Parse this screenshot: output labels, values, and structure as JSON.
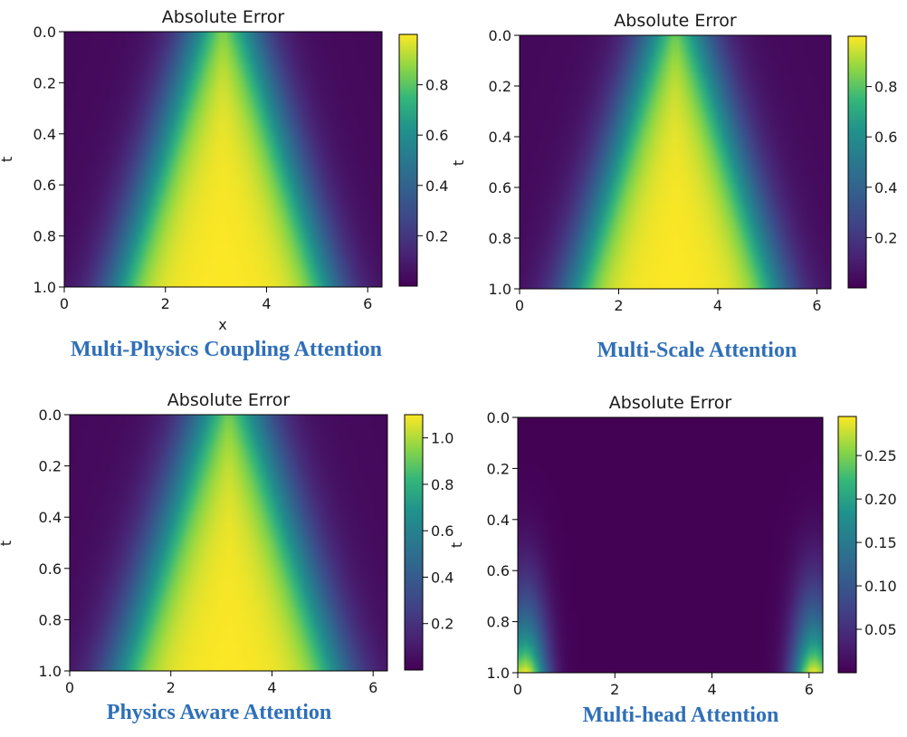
{
  "chart_data": [
    {
      "type": "heatmap",
      "title": "Absolute Error",
      "xlabel": "x",
      "ylabel": "t",
      "caption": "Multi-Physics Coupling Attention",
      "xlim": [
        0,
        6.283
      ],
      "ylim": [
        0.0,
        1.0
      ],
      "y_inverted": true,
      "xticks": [
        "0",
        "2",
        "4",
        "6"
      ],
      "yticks": [
        "0.0",
        "0.2",
        "0.4",
        "0.6",
        "0.8",
        "1.0"
      ],
      "colormap": "viridis",
      "colorbar": {
        "min": 0.0,
        "max": 1.0,
        "ticks": [
          "0.2",
          "0.4",
          "0.6",
          "0.8"
        ]
      },
      "field": {
        "kind": "cone",
        "peak": 1.0,
        "center_x": 3.14,
        "half_width_t0": 0.55,
        "half_width_t1": 2.15,
        "edge": 1.1
      }
    },
    {
      "type": "heatmap",
      "title": "Absolute Error",
      "xlabel": "",
      "ylabel": "t",
      "caption": "Multi-Scale Attention",
      "xlim": [
        0,
        6.283
      ],
      "ylim": [
        0.0,
        1.0
      ],
      "y_inverted": true,
      "xticks": [
        "0",
        "2",
        "4",
        "6"
      ],
      "yticks": [
        "0.0",
        "0.2",
        "0.4",
        "0.6",
        "0.8",
        "1.0"
      ],
      "colormap": "viridis",
      "colorbar": {
        "min": 0.0,
        "max": 1.0,
        "ticks": [
          "0.2",
          "0.4",
          "0.6",
          "0.8"
        ]
      },
      "field": {
        "kind": "cone",
        "peak": 1.0,
        "center_x": 3.14,
        "half_width_t0": 0.5,
        "half_width_t1": 2.1,
        "edge": 1.1
      }
    },
    {
      "type": "heatmap",
      "title": "Absolute Error",
      "xlabel": "",
      "ylabel": "t",
      "caption": "Physics Aware Attention",
      "xlim": [
        0,
        6.283
      ],
      "ylim": [
        0.0,
        1.0
      ],
      "y_inverted": true,
      "xticks": [
        "0",
        "2",
        "4",
        "6"
      ],
      "yticks": [
        "0.0",
        "0.2",
        "0.4",
        "0.6",
        "0.8",
        "1.0"
      ],
      "colormap": "viridis",
      "colorbar": {
        "min": 0.0,
        "max": 1.1,
        "ticks": [
          "0.2",
          "0.4",
          "0.6",
          "0.8",
          "1.0"
        ]
      },
      "field": {
        "kind": "cone",
        "peak": 1.1,
        "center_x": 3.14,
        "half_width_t0": 0.55,
        "half_width_t1": 2.2,
        "edge": 1.2
      }
    },
    {
      "type": "heatmap",
      "title": "Absolute Error",
      "xlabel": "",
      "ylabel": "t",
      "caption": "Multi-head Attention",
      "xlim": [
        0,
        6.283
      ],
      "ylim": [
        0.0,
        1.0
      ],
      "y_inverted": true,
      "xticks": [
        "0",
        "2",
        "4",
        "6"
      ],
      "yticks": [
        "0.0",
        "0.2",
        "0.4",
        "0.6",
        "0.8",
        "1.0"
      ],
      "colormap": "viridis",
      "colorbar": {
        "min": 0.0,
        "max": 0.295,
        "ticks": [
          "0.05",
          "0.10",
          "0.15",
          "0.20",
          "0.25"
        ]
      },
      "field": {
        "kind": "edges",
        "peak": 0.295,
        "left_x": 0.15,
        "right_x": 6.1
      }
    }
  ]
}
